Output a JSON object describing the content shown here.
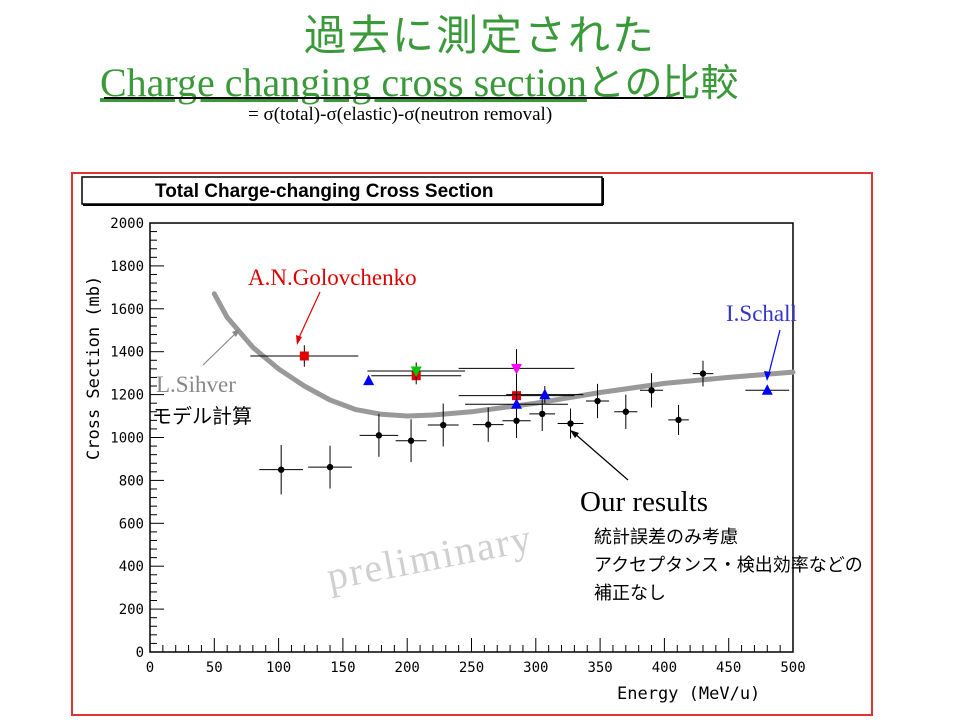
{
  "header": {
    "title_line1": "過去に測定された",
    "title_cc": "Charge changing cross section",
    "title_suffix": "との比較",
    "formula": "= σ(total)-σ(elastic)-σ(neutron removal)",
    "title_color": "#3a9a3a"
  },
  "chart_data": {
    "type": "scatter",
    "title": "Total Charge-changing Cross Section",
    "xlabel": "Energy (MeV/u)",
    "ylabel": "Cross Section (mb)",
    "xlim": [
      0,
      500
    ],
    "ylim": [
      0,
      2000
    ],
    "x_ticks": [
      "0",
      "50",
      "100",
      "150",
      "200",
      "250",
      "300",
      "350",
      "400",
      "450",
      "500"
    ],
    "y_ticks": [
      "0",
      "200",
      "400",
      "600",
      "800",
      "1000",
      "1200",
      "1400",
      "1600",
      "1800",
      "2000"
    ],
    "grid": false,
    "series": [
      {
        "name": "Our results",
        "color": "#000000",
        "marker": "circle",
        "points": [
          {
            "x": 102,
            "y": 850,
            "xerr": 17,
            "yerr": 115
          },
          {
            "x": 140,
            "y": 862,
            "xerr": 17,
            "yerr": 100
          },
          {
            "x": 178,
            "y": 1010,
            "xerr": 15,
            "yerr": 100
          },
          {
            "x": 203,
            "y": 985,
            "xerr": 12,
            "yerr": 100
          },
          {
            "x": 228,
            "y": 1058,
            "xerr": 12,
            "yerr": 100
          },
          {
            "x": 263,
            "y": 1060,
            "xerr": 12,
            "yerr": 80
          },
          {
            "x": 285,
            "y": 1078,
            "xerr": 11,
            "yerr": 80
          },
          {
            "x": 305,
            "y": 1110,
            "xerr": 10,
            "yerr": 80
          },
          {
            "x": 327,
            "y": 1065,
            "xerr": 10,
            "yerr": 70
          },
          {
            "x": 348,
            "y": 1170,
            "xerr": 9,
            "yerr": 80
          },
          {
            "x": 370,
            "y": 1120,
            "xerr": 9,
            "yerr": 80
          },
          {
            "x": 390,
            "y": 1220,
            "xerr": 9,
            "yerr": 80
          },
          {
            "x": 411,
            "y": 1082,
            "xerr": 8,
            "yerr": 70
          },
          {
            "x": 430,
            "y": 1298,
            "xerr": 8,
            "yerr": 60
          }
        ]
      },
      {
        "name": "A.N.Golovchenko",
        "color": "#e00000",
        "marker": "square",
        "points": [
          {
            "x": 120,
            "y": 1380,
            "xerr": 42,
            "yerr": 50
          },
          {
            "x": 207,
            "y": 1288,
            "xerr": 35,
            "yerr": 40
          },
          {
            "x": 285,
            "y": 1195,
            "xerr": 45,
            "yerr": 50
          }
        ]
      },
      {
        "name": "",
        "color": "#00c800",
        "marker": "triangle-down",
        "points": [
          {
            "x": 207,
            "y": 1310,
            "xerr": 38,
            "yerr": 40
          }
        ]
      },
      {
        "name": "",
        "color": "#ff00ff",
        "marker": "triangle-down",
        "points": [
          {
            "x": 285,
            "y": 1322,
            "xerr": 45,
            "yerr": 90
          }
        ]
      },
      {
        "name": "I.Schall",
        "color": "#0000ff",
        "marker": "triangle-up",
        "points": [
          {
            "x": 170,
            "y": 1265,
            "xerr": 0,
            "yerr": 0
          },
          {
            "x": 285,
            "y": 1155,
            "xerr": 40,
            "yerr": 60
          },
          {
            "x": 307,
            "y": 1200,
            "xerr": 30,
            "yerr": 40
          },
          {
            "x": 480,
            "y": 1220,
            "xerr": 17,
            "yerr": 0
          }
        ]
      },
      {
        "name": "L.Sihver",
        "color": "#999999",
        "marker": "line",
        "points": [
          {
            "x": 50,
            "y": 1670
          },
          {
            "x": 60,
            "y": 1560
          },
          {
            "x": 80,
            "y": 1420
          },
          {
            "x": 100,
            "y": 1320
          },
          {
            "x": 120,
            "y": 1240
          },
          {
            "x": 140,
            "y": 1175
          },
          {
            "x": 160,
            "y": 1130
          },
          {
            "x": 180,
            "y": 1108
          },
          {
            "x": 200,
            "y": 1100
          },
          {
            "x": 220,
            "y": 1105
          },
          {
            "x": 250,
            "y": 1120
          },
          {
            "x": 300,
            "y": 1160
          },
          {
            "x": 350,
            "y": 1210
          },
          {
            "x": 400,
            "y": 1252
          },
          {
            "x": 450,
            "y": 1280
          },
          {
            "x": 500,
            "y": 1305
          }
        ]
      }
    ],
    "annotations": {
      "golovchenko": "A.N.Golovchenko",
      "schall": "I.Schall",
      "sihver": "L.Sihver",
      "model": "モデル計算",
      "our_results": "Our results",
      "note1": "統計誤差のみ考慮",
      "note2": "アクセプタンス・検出効率などの",
      "note3": "補正なし",
      "watermark": "preliminary"
    }
  }
}
